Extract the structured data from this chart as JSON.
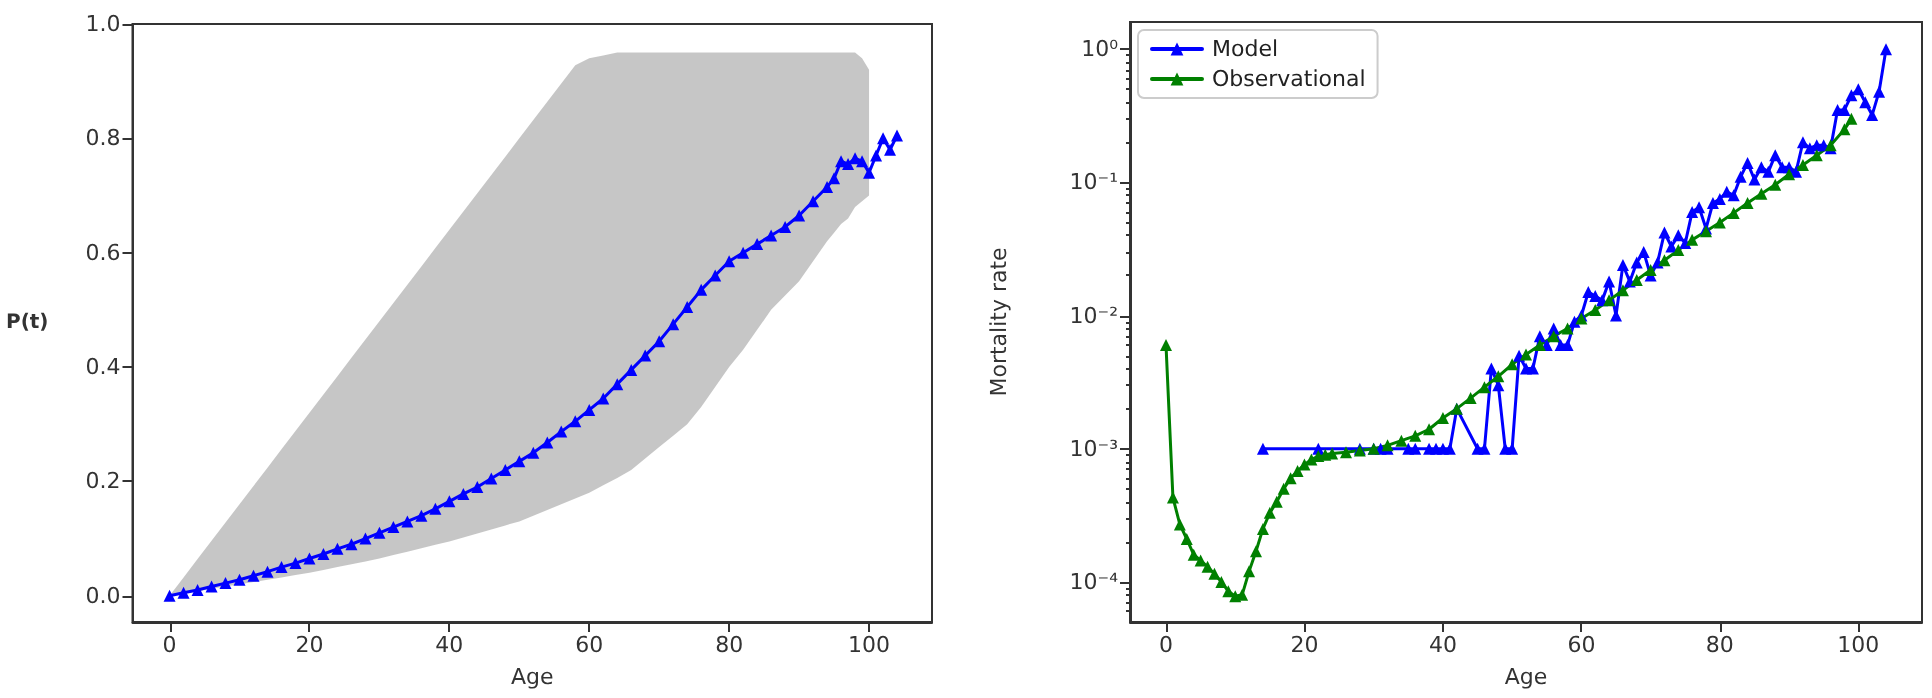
{
  "chart_data": [
    {
      "type": "line",
      "xlabel": "Age",
      "ylabel": "P(t)",
      "xlim": [
        -5.3,
        109
      ],
      "ylim": [
        -0.046,
        1.0
      ],
      "xticks": [
        0,
        20,
        40,
        60,
        80,
        100
      ],
      "yticks": [
        {
          "value": 0,
          "label": "0.0"
        },
        {
          "value": 0.2,
          "label": "0.2"
        },
        {
          "value": 0.4,
          "label": "0.4"
        },
        {
          "value": 0.6,
          "label": "0.6"
        },
        {
          "value": 0.8,
          "label": "0.8"
        },
        {
          "value": 1,
          "label": "1.0"
        }
      ],
      "grid": false,
      "legend": false,
      "marker": "triangle",
      "line_style": "solid",
      "series": [
        {
          "color": "#0000ff",
          "x": [
            0,
            2,
            4,
            6,
            8,
            10,
            12,
            14,
            16,
            18,
            20,
            22,
            24,
            26,
            28,
            30,
            32,
            34,
            36,
            38,
            40,
            42,
            44,
            46,
            48,
            50,
            52,
            54,
            56,
            58,
            60,
            62,
            64,
            66,
            68,
            70,
            72,
            74,
            76,
            78,
            80,
            82,
            84,
            86,
            88,
            90,
            92,
            94,
            95,
            96,
            97,
            98,
            99,
            100,
            101,
            102,
            103,
            104
          ],
          "values": [
            0,
            0.005,
            0.01,
            0.016,
            0.022,
            0.028,
            0.035,
            0.042,
            0.05,
            0.057,
            0.065,
            0.073,
            0.082,
            0.09,
            0.1,
            0.11,
            0.12,
            0.13,
            0.14,
            0.152,
            0.165,
            0.178,
            0.19,
            0.205,
            0.22,
            0.235,
            0.25,
            0.268,
            0.287,
            0.305,
            0.325,
            0.345,
            0.37,
            0.395,
            0.42,
            0.445,
            0.475,
            0.505,
            0.535,
            0.56,
            0.585,
            0.6,
            0.615,
            0.63,
            0.645,
            0.665,
            0.69,
            0.715,
            0.73,
            0.76,
            0.755,
            0.765,
            0.76,
            0.74,
            0.77,
            0.8,
            0.78,
            0.805
          ],
          "lower": [
            0,
            0.004,
            0.008,
            0.012,
            0.016,
            0.02,
            0.024,
            0.028,
            0.032,
            0.036,
            0.04,
            0.045,
            0.05,
            0.055,
            0.06,
            0.065,
            0.071,
            0.077,
            0.083,
            0.089,
            0.095,
            0.102,
            0.109,
            0.116,
            0.123,
            0.13,
            0.14,
            0.15,
            0.16,
            0.17,
            0.18,
            0.193,
            0.206,
            0.22,
            0.24,
            0.26,
            0.28,
            0.3,
            0.33,
            0.365,
            0.4,
            0.43,
            0.465,
            0.5,
            0.525,
            0.55,
            0.585,
            0.62,
            0.635,
            0.65,
            0.66,
            0.68,
            0.69,
            0.7,
            null,
            null,
            null,
            null
          ],
          "upper": [
            0,
            0.032,
            0.064,
            0.096,
            0.128,
            0.16,
            0.192,
            0.224,
            0.256,
            0.288,
            0.32,
            0.352,
            0.384,
            0.416,
            0.448,
            0.48,
            0.512,
            0.544,
            0.576,
            0.608,
            0.64,
            0.672,
            0.704,
            0.736,
            0.768,
            0.8,
            0.832,
            0.864,
            0.896,
            0.928,
            0.94,
            0.945,
            0.95,
            0.95,
            0.95,
            0.95,
            0.95,
            0.95,
            0.95,
            0.95,
            0.95,
            0.95,
            0.95,
            0.95,
            0.95,
            0.95,
            0.95,
            0.95,
            0.95,
            0.95,
            0.95,
            0.95,
            0.94,
            0.92,
            null,
            null,
            null,
            null
          ]
        }
      ]
    },
    {
      "type": "line",
      "xlabel": "Age",
      "ylabel": "Mortality rate",
      "log": "y",
      "xlim": [
        -5.2,
        109.2
      ],
      "ylim": [
        5e-05,
        1.6
      ],
      "xticks": [
        0,
        20,
        40,
        60,
        80,
        100
      ],
      "yticks": [
        {
          "value": 0.0001,
          "label": "10⁻⁴"
        },
        {
          "value": 0.001,
          "label": "10⁻³"
        },
        {
          "value": 0.01,
          "label": "10⁻²"
        },
        {
          "value": 0.1,
          "label": "10⁻¹"
        },
        {
          "value": 1,
          "label": "10⁰"
        }
      ],
      "grid": false,
      "legend": "top left",
      "marker": "triangle",
      "line_style": "solid",
      "series": [
        {
          "name": "Model",
          "color": "#0000ff",
          "x": [
            14,
            22,
            28,
            30,
            31,
            32,
            35,
            36,
            38,
            39,
            40,
            41,
            42,
            45,
            46,
            47,
            48,
            49,
            50,
            51,
            52,
            53,
            54,
            55,
            56,
            57,
            58,
            59,
            60,
            61,
            62,
            63,
            64,
            65,
            66,
            67,
            68,
            69,
            70,
            71,
            72,
            73,
            74,
            75,
            76,
            77,
            78,
            79,
            80,
            81,
            82,
            83,
            84,
            85,
            86,
            87,
            88,
            89,
            90,
            91,
            92,
            93,
            94,
            95,
            96,
            97,
            98,
            99,
            100,
            101,
            102,
            103,
            104
          ],
          "values": [
            0.001,
            0.001,
            0.001,
            0.001,
            0.001,
            0.001,
            0.001,
            0.001,
            0.001,
            0.001,
            0.001,
            0.001,
            0.002,
            0.001,
            0.001,
            0.004,
            0.003,
            0.001,
            0.001,
            0.005,
            0.004,
            0.004,
            0.007,
            0.006,
            0.008,
            0.006,
            0.006,
            0.009,
            0.01,
            0.015,
            0.014,
            0.013,
            0.018,
            0.01,
            0.024,
            0.018,
            0.025,
            0.03,
            0.02,
            0.025,
            0.042,
            0.033,
            0.04,
            0.035,
            0.06,
            0.065,
            0.045,
            0.07,
            0.075,
            0.085,
            0.08,
            0.11,
            0.14,
            0.105,
            0.13,
            0.12,
            0.16,
            0.13,
            0.13,
            0.12,
            0.2,
            0.18,
            0.19,
            0.19,
            0.18,
            0.35,
            0.35,
            0.45,
            0.5,
            0.4,
            0.32,
            0.48,
            1.0
          ]
        },
        {
          "name": "Observational",
          "color": "#008000",
          "x": [
            0,
            1,
            2,
            3,
            4,
            5,
            6,
            7,
            8,
            9,
            10,
            11,
            12,
            13,
            14,
            15,
            16,
            17,
            18,
            19,
            20,
            21,
            22,
            23,
            24,
            26,
            28,
            30,
            32,
            34,
            36,
            38,
            40,
            42,
            44,
            46,
            48,
            50,
            52,
            54,
            56,
            58,
            60,
            62,
            64,
            66,
            68,
            70,
            72,
            74,
            76,
            78,
            80,
            82,
            84,
            86,
            88,
            90,
            92,
            94,
            96,
            98,
            99
          ],
          "values": [
            0.006,
            0.00043,
            0.00027,
            0.00021,
            0.00016,
            0.000145,
            0.00013,
            0.000115,
            0.0001,
            8.5e-05,
            7.8e-05,
            8e-05,
            0.00012,
            0.00017,
            0.00025,
            0.00033,
            0.0004,
            0.0005,
            0.0006,
            0.00068,
            0.00076,
            0.00083,
            0.00088,
            0.0009,
            0.00092,
            0.00094,
            0.00097,
            0.001,
            0.00106,
            0.00115,
            0.00125,
            0.0014,
            0.0017,
            0.002,
            0.0024,
            0.0029,
            0.0035,
            0.0043,
            0.0051,
            0.006,
            0.007,
            0.008,
            0.0095,
            0.011,
            0.013,
            0.0155,
            0.0185,
            0.022,
            0.026,
            0.031,
            0.037,
            0.043,
            0.05,
            0.059,
            0.07,
            0.082,
            0.096,
            0.115,
            0.135,
            0.16,
            0.19,
            0.25,
            0.3
          ]
        }
      ]
    }
  ]
}
